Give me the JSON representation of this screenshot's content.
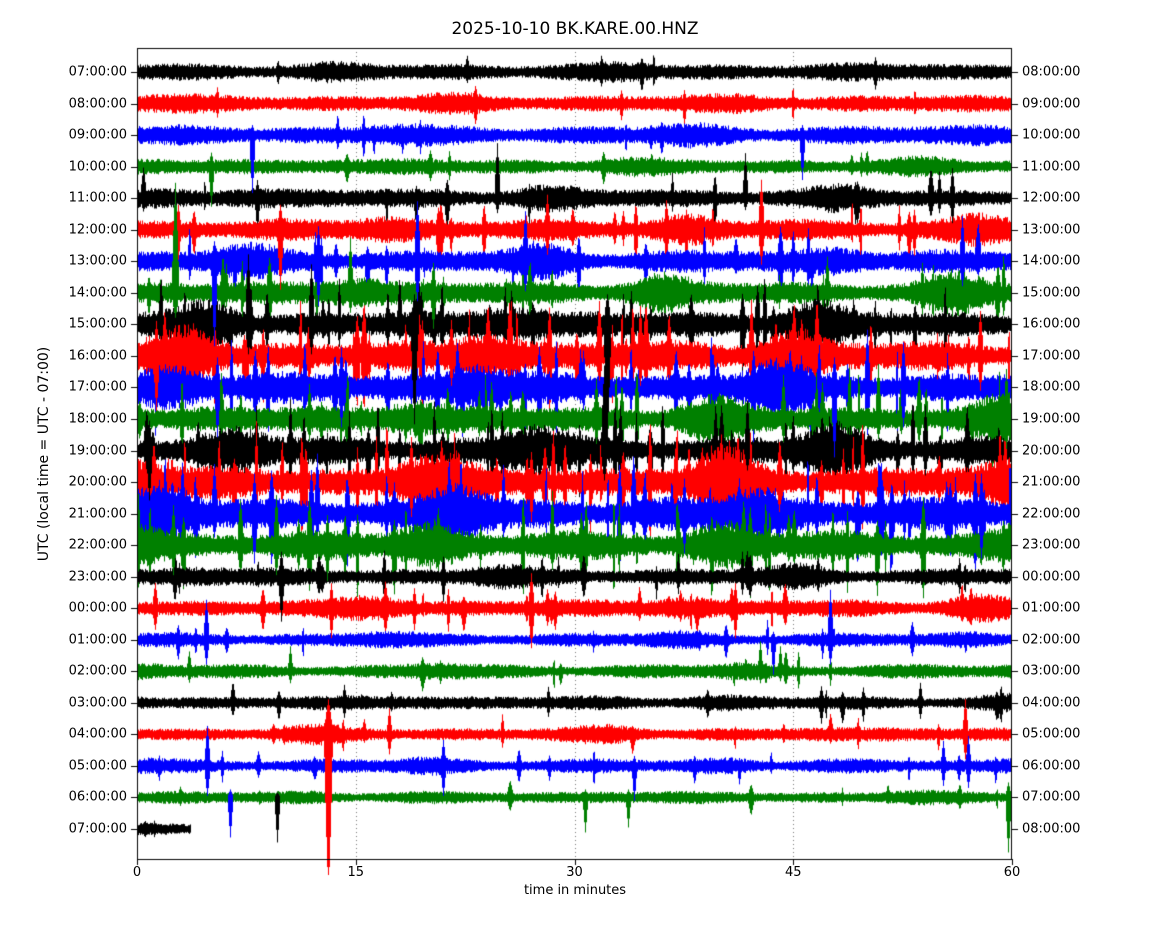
{
  "title": "2025-10-10 BK.KARE.00.HNZ",
  "xlabel": "time in minutes",
  "ylabel": "UTC (local time = UTC - 07:00)",
  "chart_data": {
    "type": "line",
    "subtype": "seismic-dayplot-helicorder",
    "title": "2025-10-10 BK.KARE.00.HNZ",
    "station_id": "BK.KARE.00.HNZ",
    "date": "2025-10-10",
    "xlabel": "time in minutes",
    "ylabel": "UTC (local time = UTC - 07:00)",
    "x_range_minutes": [
      0,
      60
    ],
    "x_ticks": [
      0,
      15,
      30,
      45,
      60
    ],
    "grid_minutes": [
      15,
      30,
      45
    ],
    "grid_style": "dotted",
    "grid_color": "#777777",
    "minutes_per_row": 60,
    "legend": "none",
    "rows": [
      {
        "left_label": "07:00:00",
        "right_label": "08:00:00",
        "color": "#000000",
        "amp": 10,
        "burst": 0.15,
        "spk": 6,
        "gain": 0.7,
        "extent": 60,
        "seed": 11
      },
      {
        "left_label": "08:00:00",
        "right_label": "09:00:00",
        "color": "#ff0000",
        "amp": 10,
        "burst": 0.15,
        "spk": 6,
        "gain": 0.7,
        "extent": 60,
        "seed": 9984
      },
      {
        "left_label": "09:00:00",
        "right_label": "10:00:00",
        "color": "#0000ff",
        "amp": 11,
        "burst": 0.2,
        "spk": 8,
        "gain": 0.7,
        "extent": 60,
        "seed": 19957
      },
      {
        "left_label": "10:00:00",
        "right_label": "11:00:00",
        "color": "#008000",
        "amp": 9,
        "burst": 0.2,
        "spk": 8,
        "gain": 0.7,
        "extent": 60,
        "seed": 29930
      },
      {
        "left_label": "11:00:00",
        "right_label": "12:00:00",
        "color": "#000000",
        "amp": 11,
        "burst": 0.3,
        "spk": 14,
        "gain": 1.2,
        "extent": 60,
        "seed": 39903
      },
      {
        "left_label": "12:00:00",
        "right_label": "13:00:00",
        "color": "#ff0000",
        "amp": 12,
        "burst": 0.45,
        "spk": 20,
        "gain": 1.2,
        "extent": 60,
        "seed": 49876
      },
      {
        "left_label": "13:00:00",
        "right_label": "14:00:00",
        "color": "#0000ff",
        "amp": 13,
        "burst": 0.45,
        "spk": 20,
        "gain": 1.2,
        "extent": 60,
        "seed": 59849
      },
      {
        "left_label": "14:00:00",
        "right_label": "15:00:00",
        "color": "#008000",
        "amp": 13,
        "burst": 0.6,
        "spk": 26,
        "gain": 1.2,
        "extent": 60,
        "seed": 69822
      },
      {
        "left_label": "15:00:00",
        "right_label": "16:00:00",
        "color": "#000000",
        "amp": 15,
        "burst": 0.7,
        "spk": 40,
        "gain": 1.5,
        "extent": 60,
        "seed": 79795
      },
      {
        "left_label": "16:00:00",
        "right_label": "17:00:00",
        "color": "#ff0000",
        "amp": 17,
        "burst": 0.75,
        "spk": 45,
        "gain": 1.5,
        "extent": 60,
        "seed": 89768
      },
      {
        "left_label": "17:00:00",
        "right_label": "18:00:00",
        "color": "#0000ff",
        "amp": 17,
        "burst": 0.6,
        "spk": 40,
        "gain": 1.5,
        "extent": 60,
        "seed": 99741
      },
      {
        "left_label": "18:00:00",
        "right_label": "19:00:00",
        "color": "#008000",
        "amp": 15,
        "burst": 0.6,
        "spk": 36,
        "gain": 1.5,
        "extent": 60,
        "seed": 109714
      },
      {
        "left_label": "19:00:00",
        "right_label": "20:00:00",
        "color": "#000000",
        "amp": 16,
        "burst": 0.7,
        "spk": 40,
        "gain": 1.5,
        "extent": 60,
        "seed": 119687
      },
      {
        "left_label": "20:00:00",
        "right_label": "21:00:00",
        "color": "#ff0000",
        "amp": 18,
        "burst": 0.75,
        "spk": 45,
        "gain": 1.5,
        "extent": 60,
        "seed": 129660
      },
      {
        "left_label": "21:00:00",
        "right_label": "22:00:00",
        "color": "#0000ff",
        "amp": 18,
        "burst": 0.7,
        "spk": 42,
        "gain": 1.5,
        "extent": 60,
        "seed": 139633
      },
      {
        "left_label": "22:00:00",
        "right_label": "23:00:00",
        "color": "#008000",
        "amp": 16,
        "burst": 0.65,
        "spk": 38,
        "gain": 1.5,
        "extent": 60,
        "seed": 149606
      },
      {
        "left_label": "23:00:00",
        "right_label": "00:00:00",
        "color": "#000000",
        "amp": 10,
        "burst": 0.35,
        "spk": 16,
        "gain": 1.0,
        "extent": 60,
        "seed": 159579
      },
      {
        "left_label": "00:00:00",
        "right_label": "01:00:00",
        "color": "#ff0000",
        "amp": 10,
        "burst": 0.5,
        "spk": 22,
        "gain": 1.0,
        "extent": 60,
        "seed": 169552
      },
      {
        "left_label": "01:00:00",
        "right_label": "02:00:00",
        "color": "#0000ff",
        "amp": 8,
        "burst": 0.25,
        "spk": 12,
        "gain": 1.0,
        "extent": 60,
        "seed": 179525
      },
      {
        "left_label": "02:00:00",
        "right_label": "03:00:00",
        "color": "#008000",
        "amp": 8,
        "burst": 0.25,
        "spk": 12,
        "gain": 1.0,
        "extent": 60,
        "seed": 189498
      },
      {
        "left_label": "03:00:00",
        "right_label": "04:00:00",
        "color": "#000000",
        "amp": 8,
        "burst": 0.25,
        "spk": 12,
        "gain": 1.0,
        "extent": 60,
        "seed": 199471
      },
      {
        "left_label": "04:00:00",
        "right_label": "05:00:00",
        "color": "#ff0000",
        "amp": 8,
        "burst": 0.3,
        "spk": 12,
        "gain": 1.0,
        "extent": 60,
        "seed": 209444
      },
      {
        "left_label": "05:00:00",
        "right_label": "06:00:00",
        "color": "#0000ff",
        "amp": 8,
        "burst": 0.3,
        "spk": 14,
        "gain": 1.0,
        "extent": 60,
        "seed": 219417
      },
      {
        "left_label": "06:00:00",
        "right_label": "07:00:00",
        "color": "#008000",
        "amp": 7,
        "burst": 0.2,
        "spk": 10,
        "gain": 1.0,
        "extent": 60,
        "seed": 229390
      },
      {
        "left_label": "07:00:00",
        "right_label": "08:00:00",
        "color": "#000000",
        "amp": 7,
        "burst": 0.1,
        "spk": 2,
        "gain": 0.3,
        "extent": 3.6,
        "seed": 239363
      }
    ],
    "major_spikes": [
      [
        2,
        7.9,
        10,
        58
      ],
      [
        2,
        45.6,
        10,
        45
      ],
      [
        3,
        5.1,
        14,
        40
      ],
      [
        4,
        24.7,
        55,
        15
      ],
      [
        4,
        41.7,
        45,
        12
      ],
      [
        4,
        55.9,
        30,
        25
      ],
      [
        5,
        2.8,
        25,
        30
      ],
      [
        5,
        9.8,
        25,
        60
      ],
      [
        5,
        28.1,
        35,
        25
      ],
      [
        5,
        42.8,
        50,
        35
      ],
      [
        5,
        53.3,
        20,
        26
      ],
      [
        6,
        5.3,
        20,
        85
      ],
      [
        6,
        12.4,
        35,
        45
      ],
      [
        6,
        19.2,
        60,
        40
      ],
      [
        6,
        26.6,
        50,
        30
      ],
      [
        6,
        56.6,
        45,
        25
      ],
      [
        7,
        2.6,
        110,
        25
      ],
      [
        7,
        14.6,
        55,
        20
      ],
      [
        7,
        20.3,
        30,
        36
      ],
      [
        8,
        7.6,
        70,
        30
      ],
      [
        8,
        11.9,
        60,
        30
      ],
      [
        8,
        19.0,
        30,
        100
      ],
      [
        8,
        32.2,
        30,
        110
      ],
      [
        9,
        1.3,
        35,
        55
      ],
      [
        9,
        21.5,
        36,
        30
      ],
      [
        9,
        34.5,
        50,
        30
      ],
      [
        9,
        57.8,
        45,
        35
      ],
      [
        10,
        5.5,
        30,
        50
      ],
      [
        10,
        14.0,
        40,
        40
      ],
      [
        10,
        47.8,
        30,
        70
      ],
      [
        10,
        52.5,
        45,
        40
      ],
      [
        11,
        31.5,
        40,
        25
      ],
      [
        11,
        50.8,
        55,
        20
      ],
      [
        11,
        59.6,
        50,
        30
      ],
      [
        12,
        0.8,
        30,
        50
      ],
      [
        12,
        32.0,
        85,
        30
      ],
      [
        12,
        41.8,
        50,
        20
      ],
      [
        12,
        54.0,
        45,
        25
      ],
      [
        13,
        18.8,
        45,
        35
      ],
      [
        13,
        27.0,
        30,
        40
      ],
      [
        13,
        44.0,
        40,
        30
      ],
      [
        14,
        8.0,
        40,
        50
      ],
      [
        14,
        37.5,
        35,
        40
      ],
      [
        14,
        57.9,
        40,
        45
      ],
      [
        15,
        2.5,
        40,
        30
      ],
      [
        15,
        9.5,
        50,
        30
      ],
      [
        15,
        13.0,
        30,
        36
      ],
      [
        16,
        9.9,
        25,
        45
      ],
      [
        16,
        21.0,
        20,
        25
      ],
      [
        16,
        41.5,
        25,
        18
      ],
      [
        17,
        13.3,
        25,
        30
      ],
      [
        17,
        19.0,
        20,
        22
      ],
      [
        17,
        27.0,
        35,
        40
      ],
      [
        17,
        41.0,
        25,
        30
      ],
      [
        18,
        4.7,
        40,
        25
      ],
      [
        18,
        43.6,
        8,
        35
      ],
      [
        18,
        47.5,
        50,
        25
      ],
      [
        19,
        10.5,
        25,
        12
      ],
      [
        19,
        42.7,
        30,
        12
      ],
      [
        19,
        44.1,
        25,
        10
      ],
      [
        20,
        14.2,
        18,
        15
      ],
      [
        20,
        28.2,
        16,
        14
      ],
      [
        20,
        53.7,
        20,
        16
      ],
      [
        21,
        13.1,
        35,
        160
      ],
      [
        21,
        17.3,
        26,
        20
      ],
      [
        21,
        56.8,
        35,
        25
      ],
      [
        22,
        4.8,
        40,
        30
      ],
      [
        22,
        21.0,
        26,
        30
      ],
      [
        22,
        34.1,
        10,
        35
      ],
      [
        22,
        55.3,
        25,
        20
      ],
      [
        22,
        57.0,
        30,
        22
      ],
      [
        23,
        6.4,
        8,
        40,
        "#0000ff"
      ],
      [
        23,
        9.6,
        5,
        45,
        "#000000"
      ],
      [
        23,
        30.7,
        8,
        35
      ],
      [
        23,
        33.7,
        8,
        30
      ],
      [
        23,
        59.7,
        15,
        55
      ]
    ],
    "colors": {
      "trace_cycle": [
        "#000000",
        "#ff0000",
        "#0000ff",
        "#008000"
      ],
      "axis": "#000000",
      "background": "#ffffff"
    }
  }
}
